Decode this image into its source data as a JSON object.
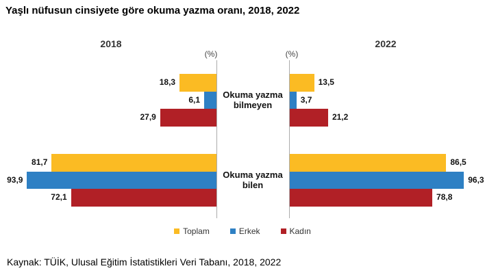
{
  "page": {
    "background": "#FFFFFF"
  },
  "title": "Yaşlı nüfusun cinsiyete göre okuma yazma oranı, 2018, 2022",
  "source": "Kaynak: TÜİK, Ulusal Eğitim İstatistikleri Veri Tabanı, 2018, 2022",
  "chart_data": {
    "type": "bar",
    "orientation": "horizontal-mirrored",
    "title": "Yaşlı nüfusun cinsiyete göre okuma yazma oranı, 2018, 2022",
    "unit_label": "(%)",
    "categories": [
      "Okuma yazma bilmeyen",
      "Okuma yazma bilen"
    ],
    "xlim": [
      0,
      100
    ],
    "grid": false,
    "axis_color": "#ABABAB",
    "panels": [
      {
        "year": "2018",
        "side": "left",
        "series": [
          {
            "name": "Toplam",
            "color": "#FBBB23",
            "values": [
              18.3,
              81.7
            ],
            "labels": [
              "18,3",
              "81,7"
            ]
          },
          {
            "name": "Erkek",
            "color": "#2E80C4",
            "values": [
              6.1,
              93.9
            ],
            "labels": [
              "6,1",
              "93,9"
            ]
          },
          {
            "name": "Kadın",
            "color": "#B12026",
            "values": [
              27.9,
              72.1
            ],
            "labels": [
              "27,9",
              "72,1"
            ]
          }
        ]
      },
      {
        "year": "2022",
        "side": "right",
        "series": [
          {
            "name": "Toplam",
            "color": "#FBBB23",
            "values": [
              13.5,
              86.5
            ],
            "labels": [
              "13,5",
              "86,5"
            ]
          },
          {
            "name": "Erkek",
            "color": "#2E80C4",
            "values": [
              3.7,
              96.3
            ],
            "labels": [
              "3,7",
              "96,3"
            ]
          },
          {
            "name": "Kadın",
            "color": "#B12026",
            "values": [
              21.2,
              78.8
            ],
            "labels": [
              "21,2",
              "78,8"
            ]
          }
        ]
      }
    ],
    "legend": [
      {
        "label": "Toplam",
        "color": "#FBBB23"
      },
      {
        "label": "Erkek",
        "color": "#2E80C4"
      },
      {
        "label": "Kadın",
        "color": "#B12026"
      }
    ],
    "legend_position": "bottom-center"
  }
}
